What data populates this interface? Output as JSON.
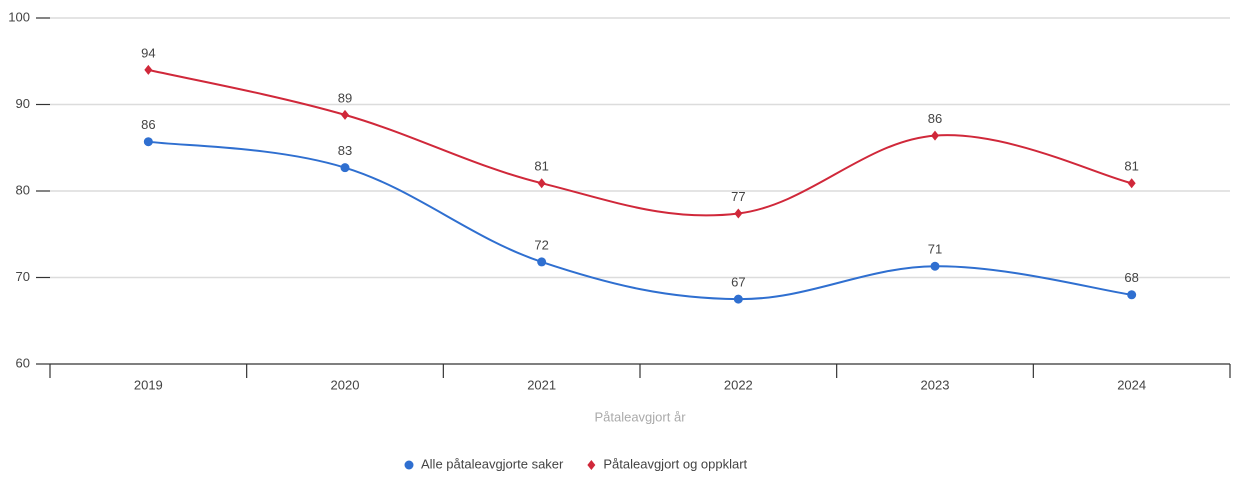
{
  "chart_data": {
    "type": "line",
    "x_label": "Påtaleavgjort år",
    "categories": [
      "2019",
      "2020",
      "2021",
      "2022",
      "2023",
      "2024"
    ],
    "series": [
      {
        "name": "Alle påtaleavgjorte saker",
        "color": "#2f6fd0",
        "marker": "circle",
        "values": [
          85.7,
          82.7,
          71.8,
          67.5,
          71.3,
          68.0
        ],
        "value_labels": [
          "86",
          "83",
          "72",
          "67",
          "71",
          "68"
        ]
      },
      {
        "name": "Påtaleavgjort og oppklart",
        "color": "#d0283a",
        "marker": "diamond",
        "values": [
          94.0,
          88.8,
          80.9,
          77.4,
          86.4,
          80.9
        ],
        "value_labels": [
          "94",
          "89",
          "81",
          "77",
          "86",
          "81"
        ]
      }
    ],
    "ylim": [
      60,
      100
    ],
    "yticks": [
      60,
      70,
      80,
      90,
      100
    ],
    "grid": true,
    "legend": "bottom"
  }
}
